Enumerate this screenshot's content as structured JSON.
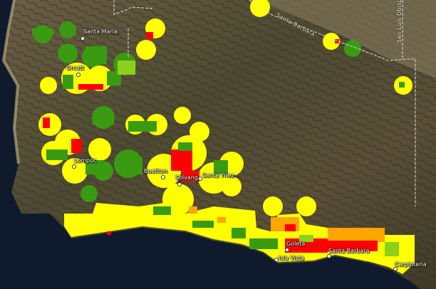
{
  "map": {
    "basemap": "satellite imagery",
    "county_labels": [
      "Santa Barbara",
      "San Luis Obispo"
    ],
    "cities": [
      {
        "name": "Santa Maria"
      },
      {
        "name": "Orcutt"
      },
      {
        "name": "Lompoc"
      },
      {
        "name": "Buellton"
      },
      {
        "name": "Solvang"
      },
      {
        "name": "Santa Ynez"
      },
      {
        "name": "Goleta"
      },
      {
        "name": "Isla Vista"
      },
      {
        "name": "Santa Barbara"
      },
      {
        "name": "Carpinteria"
      }
    ],
    "legend_colors": {
      "low": "#3a9a12",
      "low_mid": "#8ccf1c",
      "mid": "#ffff00",
      "high": "#ffa500",
      "very_high": "#ff0000"
    }
  }
}
